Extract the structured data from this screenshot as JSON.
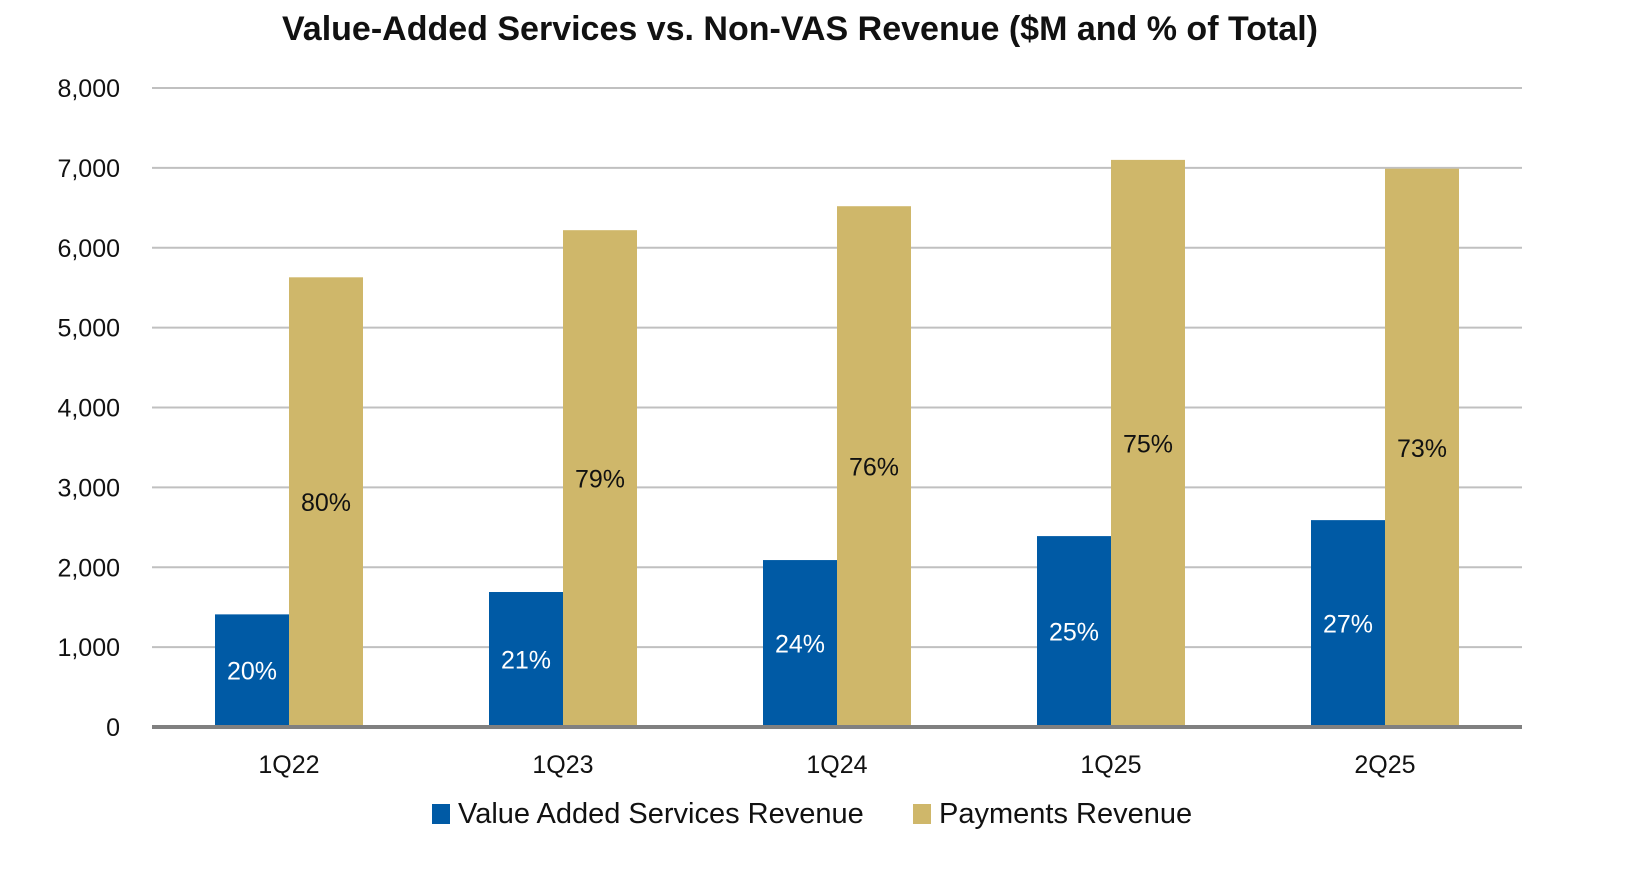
{
  "chart_data": {
    "type": "bar",
    "title": "Value-Added Services vs. Non-VAS Revenue ($M and % of Total)",
    "xlabel": "",
    "ylabel": "",
    "ylim": [
      0,
      8000
    ],
    "yticks": [
      0,
      1000,
      2000,
      3000,
      4000,
      5000,
      6000,
      7000,
      8000
    ],
    "ytick_labels": [
      "0",
      "1,000",
      "2,000",
      "3,000",
      "4,000",
      "5,000",
      "6,000",
      "7,000",
      "8,000"
    ],
    "grid": true,
    "legend_position": "bottom",
    "categories": [
      "1Q22",
      "1Q23",
      "1Q24",
      "1Q25",
      "2Q25"
    ],
    "series": [
      {
        "name": "Value Added Services Revenue",
        "color": "#005aa5",
        "values": [
          1410,
          1690,
          2090,
          2390,
          2590
        ],
        "labels": [
          "20%",
          "21%",
          "24%",
          "25%",
          "27%"
        ],
        "label_color": "#ffffff"
      },
      {
        "name": "Payments Revenue",
        "color": "#cfb76a",
        "values": [
          5630,
          6220,
          6520,
          7100,
          6990
        ],
        "labels": [
          "80%",
          "79%",
          "76%",
          "75%",
          "73%"
        ],
        "label_color": "#111111"
      }
    ]
  }
}
